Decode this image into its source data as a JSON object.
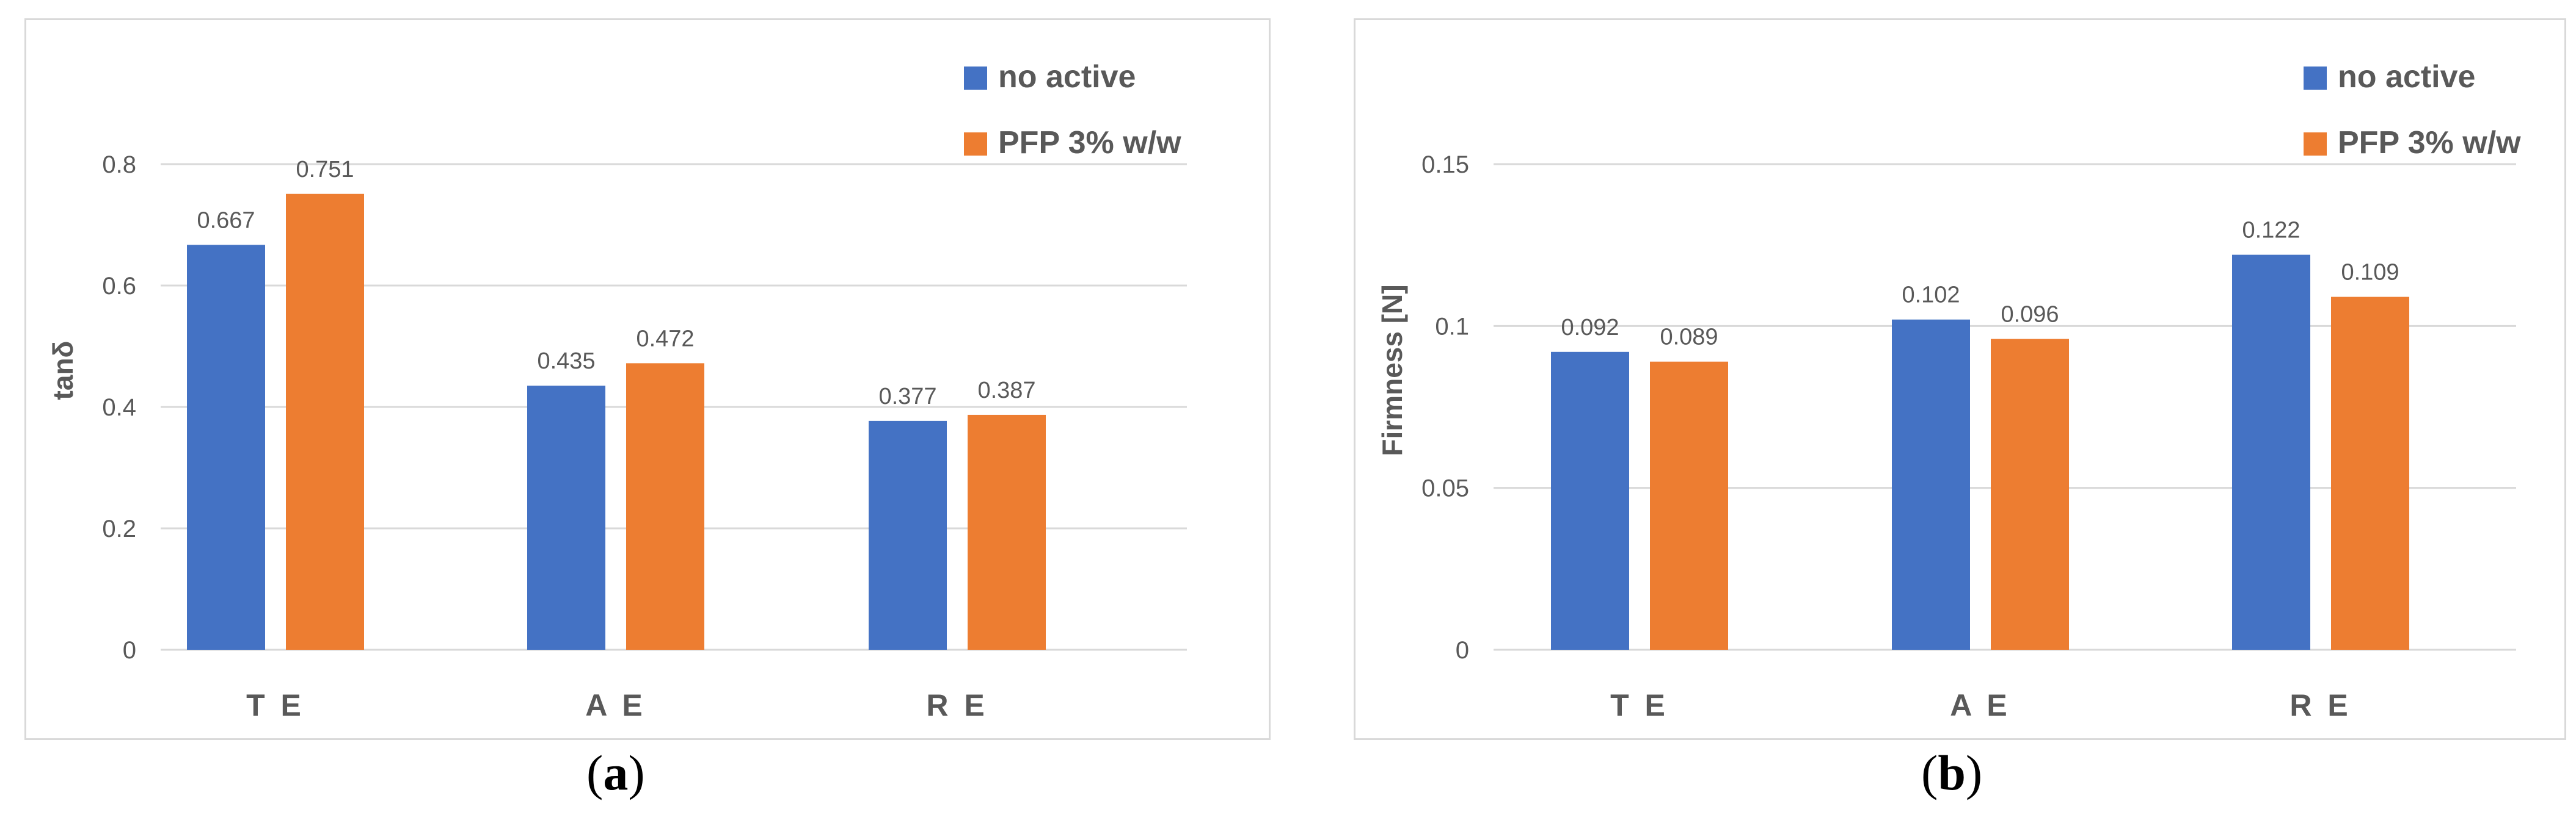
{
  "colors": {
    "no_active": "#4472C4",
    "pfp": "#ED7D31",
    "grid": "#d9d9d9",
    "text": "#595959"
  },
  "captions": {
    "a": "a",
    "b": "b"
  },
  "chart_data": [
    {
      "id": "a",
      "type": "bar",
      "title": "",
      "xlabel": "",
      "ylabel": "tanδ",
      "categories": [
        "T E",
        "A E",
        "R E"
      ],
      "series": [
        {
          "name": "no active",
          "values": [
            0.667,
            0.435,
            0.377
          ]
        },
        {
          "name": "PFP 3% w/w",
          "values": [
            0.751,
            0.472,
            0.387
          ]
        }
      ],
      "data_labels": [
        [
          "0.667",
          "0.435",
          "0.377"
        ],
        [
          "0.751",
          "0.472",
          "0.387"
        ]
      ],
      "ylim": [
        0,
        0.8
      ],
      "yticks": [
        0,
        0.2,
        0.4,
        0.6,
        0.8
      ],
      "ytick_labels": [
        "0",
        "0.2",
        "0.4",
        "0.6",
        "0.8"
      ],
      "grid": true,
      "legend_position": "top-right"
    },
    {
      "id": "b",
      "type": "bar",
      "title": "",
      "xlabel": "",
      "ylabel": "Firmness [N]",
      "categories": [
        "T E",
        "A E",
        "R E"
      ],
      "series": [
        {
          "name": "no active",
          "values": [
            0.092,
            0.102,
            0.122
          ]
        },
        {
          "name": "PFP 3% w/w",
          "values": [
            0.089,
            0.096,
            0.109
          ]
        }
      ],
      "data_labels": [
        [
          "0.092",
          "0.102",
          "0.122"
        ],
        [
          "0.089",
          "0.096",
          "0.109"
        ]
      ],
      "ylim": [
        0,
        0.15
      ],
      "yticks": [
        0,
        0.05,
        0.1,
        0.15
      ],
      "ytick_labels": [
        "0",
        "0.05",
        "0.1",
        "0.15"
      ],
      "grid": true,
      "legend_position": "top-right"
    }
  ]
}
